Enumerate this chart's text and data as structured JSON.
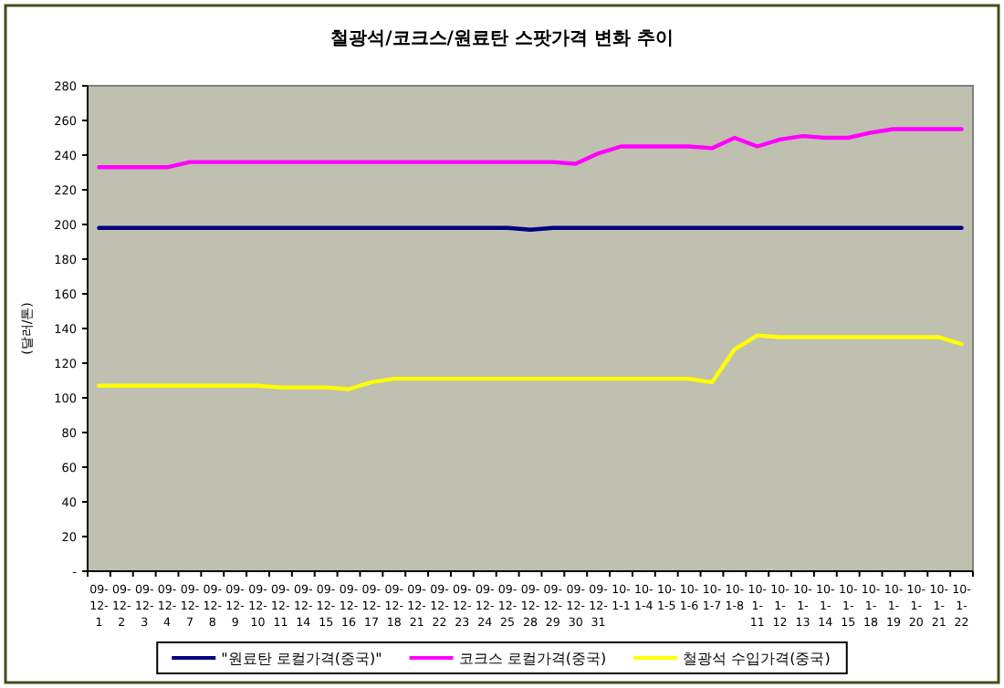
{
  "chart_data": {
    "type": "line",
    "title": "철광석/코크스/원료탄 스팟가격 변화 추이",
    "ylabel": "(달러/톤)",
    "categories": [
      "09-12-1",
      "09-12-2",
      "09-12-3",
      "09-12-4",
      "09-12-7",
      "09-12-8",
      "09-12-9",
      "09-12-10",
      "09-12-11",
      "09-12-14",
      "09-12-15",
      "09-12-16",
      "09-12-17",
      "09-12-18",
      "09-12-21",
      "09-12-22",
      "09-12-23",
      "09-12-24",
      "09-12-25",
      "09-12-28",
      "09-12-29",
      "09-12-30",
      "09-12-31",
      "10-1-1",
      "10-1-4",
      "10-1-5",
      "10-1-6",
      "10-1-7",
      "10-1-8",
      "10-1-11",
      "10-1-12",
      "10-1-13",
      "10-1-14",
      "10-1-15",
      "10-1-18",
      "10-1-19",
      "10-1-20",
      "10-1-21",
      "10-1-22"
    ],
    "series": [
      {
        "name": "\"원료탄 로컬가격(중국)\"",
        "color": "#000080",
        "values": [
          198,
          198,
          198,
          198,
          198,
          198,
          198,
          198,
          198,
          198,
          198,
          198,
          198,
          198,
          198,
          198,
          198,
          198,
          198,
          197,
          198,
          198,
          198,
          198,
          198,
          198,
          198,
          198,
          198,
          198,
          198,
          198,
          198,
          198,
          198,
          198,
          198,
          198,
          198
        ]
      },
      {
        "name": "코크스 로컬가격(중국)",
        "color": "#ff00ff",
        "values": [
          233,
          233,
          233,
          233,
          236,
          236,
          236,
          236,
          236,
          236,
          236,
          236,
          236,
          236,
          236,
          236,
          236,
          236,
          236,
          236,
          236,
          235,
          241,
          245,
          245,
          245,
          245,
          244,
          250,
          245,
          249,
          251,
          250,
          250,
          253,
          255,
          255,
          255,
          255
        ]
      },
      {
        "name": "철광석 수입가격(중국)",
        "color": "#ffff00",
        "values": [
          107,
          107,
          107,
          107,
          107,
          107,
          107,
          107,
          106,
          106,
          106,
          105,
          109,
          111,
          111,
          111,
          111,
          111,
          111,
          111,
          111,
          111,
          111,
          111,
          111,
          111,
          111,
          109,
          128,
          136,
          135,
          135,
          135,
          135,
          135,
          135,
          135,
          135,
          131
        ]
      }
    ],
    "ylim": [
      0,
      280
    ],
    "yticks": [
      {
        "value": 0,
        "label": "-"
      },
      20,
      40,
      60,
      80,
      100,
      120,
      140,
      160,
      180,
      200,
      220,
      240,
      260,
      280
    ],
    "legend": "bottom"
  }
}
